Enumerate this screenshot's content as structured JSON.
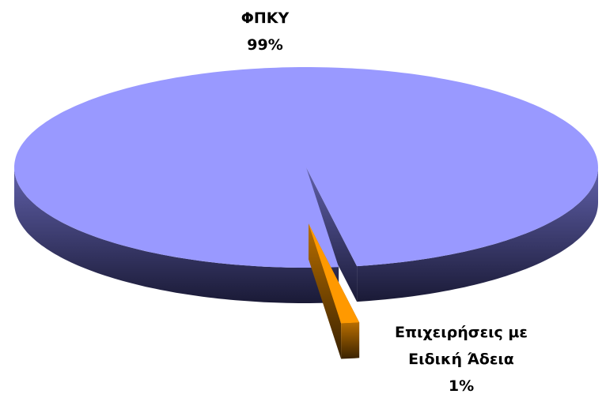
{
  "chart_data": {
    "type": "pie",
    "categories": [
      "ΦΠΚΥ",
      "Επιχειρήσεις με Ειδική Άδεια"
    ],
    "values": [
      99,
      1
    ],
    "value_labels": [
      "99%",
      "1%"
    ],
    "colors": [
      "#9999ff",
      "#ff9900"
    ],
    "side_colors": [
      [
        "#6060aa",
        "#1a1a36"
      ],
      [
        "#b86e00",
        "#3a2200"
      ]
    ],
    "exploded": [
      false,
      true
    ]
  }
}
